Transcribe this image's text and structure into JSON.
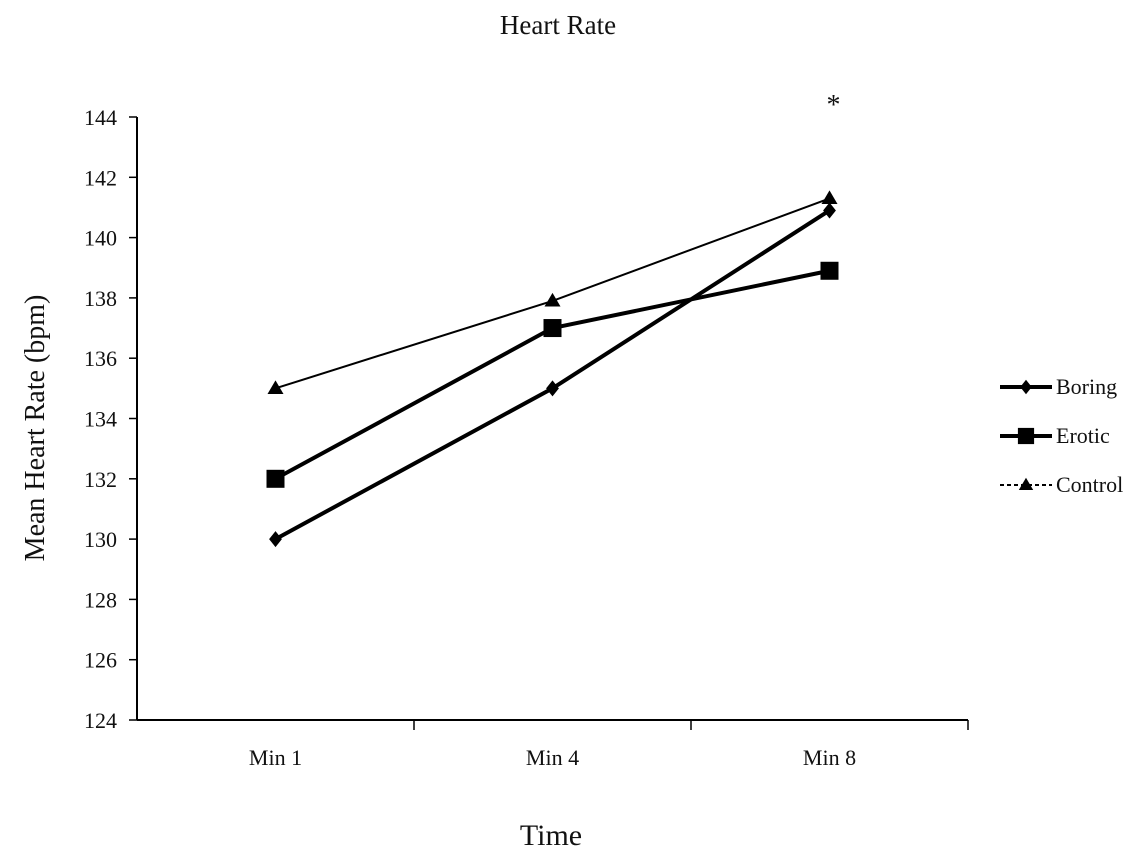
{
  "chart_data": {
    "type": "line",
    "title": "Heart Rate",
    "xlabel": "Time",
    "ylabel": "Mean Heart Rate    (bpm)",
    "categories": [
      "Min 1",
      "Min 4",
      "Min 8"
    ],
    "ylim": [
      124,
      144
    ],
    "yticks": [
      124,
      126,
      128,
      130,
      132,
      134,
      136,
      138,
      140,
      142,
      144
    ],
    "grid": false,
    "legend_position": "right",
    "series": [
      {
        "name": "Boring",
        "values": [
          130,
          135,
          140.9
        ],
        "marker": "diamond",
        "color": "#000000"
      },
      {
        "name": "Erotic",
        "values": [
          132,
          137,
          138.9
        ],
        "marker": "square",
        "color": "#000000"
      },
      {
        "name": "Control",
        "values": [
          135,
          137.9,
          141.3
        ],
        "marker": "triangle",
        "color": "#000000"
      }
    ],
    "annotations": [
      {
        "text": "*",
        "category": "Min 8",
        "y": 144.7
      }
    ]
  }
}
